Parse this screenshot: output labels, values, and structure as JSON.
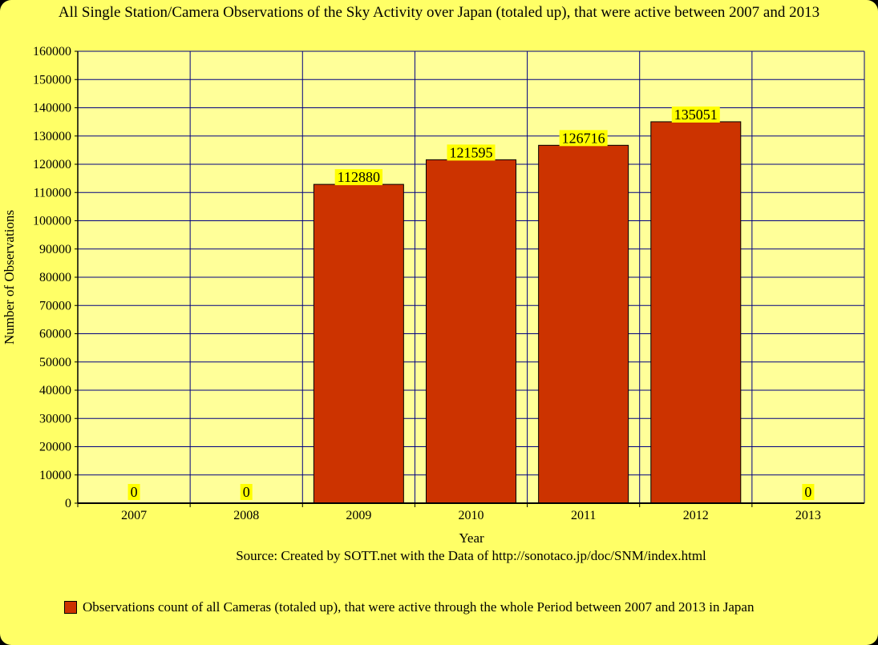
{
  "chart_data": {
    "type": "bar",
    "title": "All Single Station/Camera Observations of the Sky Activity over Japan (totaled up), that were active between 2007 and 2013",
    "xlabel": "Year",
    "ylabel": "Number of Observations",
    "categories": [
      "2007",
      "2008",
      "2009",
      "2010",
      "2011",
      "2012",
      "2013"
    ],
    "series": [
      {
        "name": "Observations count of all Cameras (totaled up), that were active through the whole Period between 2007 and 2013 in Japan",
        "values": [
          0,
          0,
          112880,
          121595,
          126716,
          135051,
          0
        ],
        "color": "#cc3300"
      }
    ],
    "ylim": [
      0,
      160000
    ],
    "yticks": [
      0,
      10000,
      20000,
      30000,
      40000,
      50000,
      60000,
      70000,
      80000,
      90000,
      100000,
      110000,
      120000,
      130000,
      140000,
      150000,
      160000
    ],
    "grid": true,
    "legend_position": "bottom",
    "colors": {
      "background": "#ffff66",
      "plot_background": "#ffff99",
      "grid": "#000080",
      "label_background": "#ffff00"
    }
  },
  "source_note": "Source: Created by SOTT.net with the Data of http://sonotaco.jp/doc/SNM/index.html"
}
